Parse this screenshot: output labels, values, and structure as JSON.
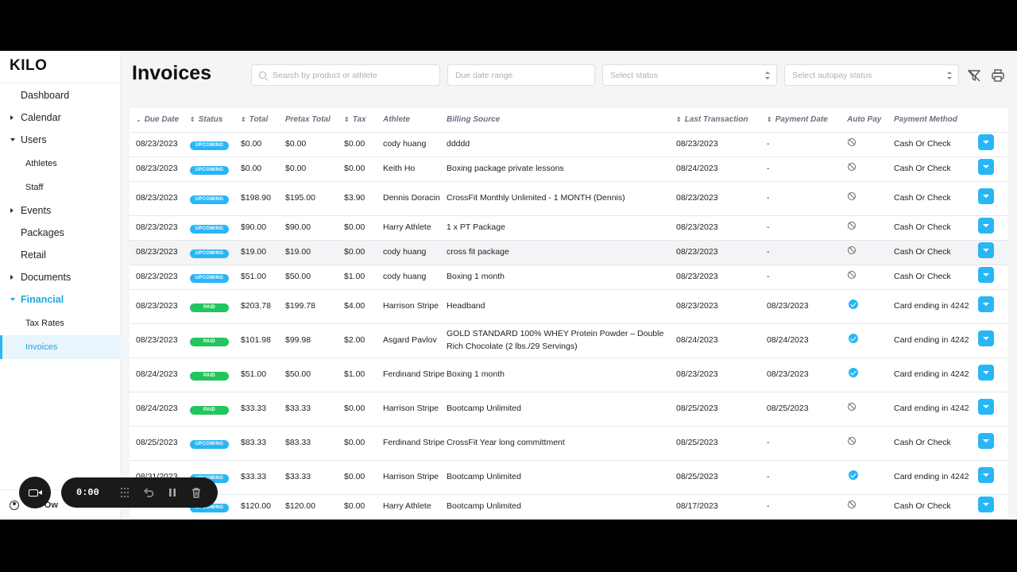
{
  "app": {
    "logo": "KILO"
  },
  "sidebar": {
    "items": [
      {
        "label": "Dashboard",
        "caret": "none",
        "sub": false,
        "state": ""
      },
      {
        "label": "Calendar",
        "caret": "right",
        "sub": false,
        "state": ""
      },
      {
        "label": "Users",
        "caret": "down",
        "sub": false,
        "state": ""
      },
      {
        "label": "Athletes",
        "caret": "none",
        "sub": true,
        "state": ""
      },
      {
        "label": "Staff",
        "caret": "none",
        "sub": true,
        "state": ""
      },
      {
        "label": "Events",
        "caret": "right",
        "sub": false,
        "state": ""
      },
      {
        "label": "Packages",
        "caret": "none",
        "sub": false,
        "state": ""
      },
      {
        "label": "Retail",
        "caret": "none",
        "sub": false,
        "state": ""
      },
      {
        "label": "Documents",
        "caret": "right",
        "sub": false,
        "state": ""
      },
      {
        "label": "Financial",
        "caret": "down",
        "sub": false,
        "state": "active-parent"
      },
      {
        "label": "Tax Rates",
        "caret": "none",
        "sub": true,
        "state": ""
      },
      {
        "label": "Invoices",
        "caret": "none",
        "sub": true,
        "state": "active"
      }
    ],
    "footer_user": "o Ow"
  },
  "header": {
    "title": "Invoices",
    "search_placeholder": "Search by product or athlete",
    "date_placeholder": "Due date range",
    "status_placeholder": "Select status",
    "autopay_placeholder": "Select autopay status"
  },
  "table": {
    "columns": [
      {
        "label": "Due Date",
        "sort": "down"
      },
      {
        "label": "Status",
        "sort": "updown"
      },
      {
        "label": "Total",
        "sort": "updown"
      },
      {
        "label": "Pretax Total",
        "sort": "none"
      },
      {
        "label": "Tax",
        "sort": "updown"
      },
      {
        "label": "Athlete",
        "sort": "none"
      },
      {
        "label": "Billing Source",
        "sort": "none"
      },
      {
        "label": "Last Transaction",
        "sort": "updown"
      },
      {
        "label": "Payment Date",
        "sort": "updown"
      },
      {
        "label": "Auto Pay",
        "sort": "none"
      },
      {
        "label": "Payment Method",
        "sort": "none"
      }
    ],
    "rows": [
      {
        "due": "08/23/2023",
        "status": "UPCOMING",
        "total": "$0.00",
        "pretax": "$0.00",
        "tax": "$0.00",
        "athlete": "cody huang",
        "source": "ddddd",
        "last": "08/23/2023",
        "paydate": "-",
        "autopay": false,
        "method": "Cash Or Check",
        "h": 31
      },
      {
        "due": "08/23/2023",
        "status": "UPCOMING",
        "total": "$0.00",
        "pretax": "$0.00",
        "tax": "$0.00",
        "athlete": "Keith Ho",
        "source": "Boxing package private lessons",
        "last": "08/24/2023",
        "paydate": "-",
        "autopay": false,
        "method": "Cash Or Check",
        "h": 31
      },
      {
        "due": "08/23/2023",
        "status": "UPCOMING",
        "total": "$198.90",
        "pretax": "$195.00",
        "tax": "$3.90",
        "athlete": "Dennis Doracin",
        "source": "CrossFit Monthly Unlimited - 1 MONTH (Dennis)",
        "last": "08/23/2023",
        "paydate": "-",
        "autopay": false,
        "method": "Cash Or Check",
        "h": 43
      },
      {
        "due": "08/23/2023",
        "status": "UPCOMING",
        "total": "$90.00",
        "pretax": "$90.00",
        "tax": "$0.00",
        "athlete": "Harry Athlete",
        "source": "1 x PT Package",
        "last": "08/23/2023",
        "paydate": "-",
        "autopay": false,
        "method": "Cash Or Check",
        "h": 31
      },
      {
        "due": "08/23/2023",
        "status": "UPCOMING",
        "total": "$19.00",
        "pretax": "$19.00",
        "tax": "$0.00",
        "athlete": "cody huang",
        "source": "cross fit package",
        "last": "08/23/2023",
        "paydate": "-",
        "autopay": false,
        "method": "Cash Or Check",
        "h": 31,
        "hl": true
      },
      {
        "due": "08/23/2023",
        "status": "UPCOMING",
        "total": "$51.00",
        "pretax": "$50.00",
        "tax": "$1.00",
        "athlete": "cody huang",
        "source": "Boxing 1 month",
        "last": "08/23/2023",
        "paydate": "-",
        "autopay": false,
        "method": "Cash Or Check",
        "h": 31
      },
      {
        "due": "08/23/2023",
        "status": "PAID",
        "total": "$203.78",
        "pretax": "$199.78",
        "tax": "$4.00",
        "athlete": "Harrison Stripe",
        "source": "Headband",
        "last": "08/23/2023",
        "paydate": "08/23/2023",
        "autopay": true,
        "method": "Card ending in 4242",
        "h": 43
      },
      {
        "due": "08/23/2023",
        "status": "PAID",
        "total": "$101.98",
        "pretax": "$99.98",
        "tax": "$2.00",
        "athlete": "Asgard Pavlov",
        "source": "GOLD STANDARD 100% WHEY Protein Powder – Double Rich Chocolate (2 lbs./29 Servings)",
        "last": "08/24/2023",
        "paydate": "08/24/2023",
        "autopay": true,
        "method": "Card ending in 4242",
        "h": 43
      },
      {
        "due": "08/24/2023",
        "status": "PAID",
        "total": "$51.00",
        "pretax": "$50.00",
        "tax": "$1.00",
        "athlete": "Ferdinand Stripe",
        "source": "Boxing 1 month",
        "last": "08/23/2023",
        "paydate": "08/23/2023",
        "autopay": true,
        "method": "Card ending in 4242",
        "h": 43
      },
      {
        "due": "08/24/2023",
        "status": "PAID",
        "total": "$33.33",
        "pretax": "$33.33",
        "tax": "$0.00",
        "athlete": "Harrison Stripe",
        "source": "Bootcamp Unlimited",
        "last": "08/25/2023",
        "paydate": "08/25/2023",
        "autopay": false,
        "method": "Card ending in 4242",
        "h": 43
      },
      {
        "due": "08/25/2023",
        "status": "UPCOMING",
        "total": "$83.33",
        "pretax": "$83.33",
        "tax": "$0.00",
        "athlete": "Ferdinand Stripe",
        "source": "CrossFit Year long committment",
        "last": "08/25/2023",
        "paydate": "-",
        "autopay": false,
        "method": "Cash Or Check",
        "h": 43
      },
      {
        "due": "08/31/2023",
        "status": "UPCOMING",
        "total": "$33.33",
        "pretax": "$33.33",
        "tax": "$0.00",
        "athlete": "Harrison Stripe",
        "source": "Bootcamp Unlimited",
        "last": "08/25/2023",
        "paydate": "-",
        "autopay": true,
        "method": "Card ending in 4242",
        "h": 43
      },
      {
        "due": "",
        "status": "UPCOMING",
        "total": "$120.00",
        "pretax": "$120.00",
        "tax": "$0.00",
        "athlete": "Harry Athlete",
        "source": "Bootcamp Unlimited",
        "last": "08/17/2023",
        "paydate": "-",
        "autopay": false,
        "method": "Cash Or Check",
        "h": 31
      }
    ]
  },
  "recorder": {
    "time": "0:00"
  }
}
